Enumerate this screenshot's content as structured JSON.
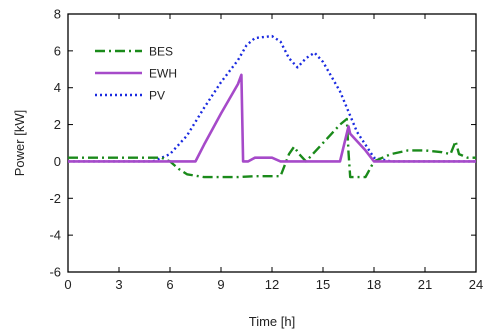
{
  "chart_data": {
    "type": "line",
    "title": "",
    "xlabel": "Time [h]",
    "ylabel": "Power [kW]",
    "xlim": [
      0,
      24
    ],
    "ylim": [
      -6,
      8
    ],
    "xticks": [
      0,
      3,
      6,
      9,
      12,
      15,
      18,
      21,
      24
    ],
    "yticks": [
      -6,
      -4,
      -2,
      0,
      2,
      4,
      6,
      8
    ],
    "xtick_labels": [
      "0",
      "3",
      "6",
      "9",
      "12",
      "15",
      "18",
      "21",
      "24"
    ],
    "ytick_labels": [
      "-6",
      "-4",
      "-2",
      "0",
      "2",
      "4",
      "6",
      "8"
    ],
    "grid": false,
    "legend_position": "top-left",
    "series": [
      {
        "name": "BES",
        "color": "#1a8a1a",
        "style": "dash-dot",
        "x": [
          0,
          5.5,
          6,
          6.5,
          7,
          8,
          9,
          10,
          11,
          12,
          12.5,
          13,
          13.3,
          13.6,
          14,
          14.5,
          15,
          15.5,
          16,
          16.4,
          16.5,
          16.6,
          17,
          17.5,
          18,
          18.5,
          19,
          20,
          21,
          22,
          22.5,
          22.8,
          23,
          23.5,
          24
        ],
        "values": [
          0.2,
          0.2,
          0.0,
          -0.4,
          -0.7,
          -0.85,
          -0.85,
          -0.85,
          -0.8,
          -0.8,
          -0.8,
          0.4,
          0.8,
          0.4,
          0.0,
          0.5,
          1.0,
          1.5,
          2.0,
          2.3,
          0.5,
          -0.85,
          -0.85,
          -0.85,
          0.0,
          0.2,
          0.4,
          0.6,
          0.6,
          0.5,
          0.4,
          1.1,
          0.4,
          0.2,
          0.2
        ]
      },
      {
        "name": "EWH",
        "color": "#a64ac9",
        "style": "solid",
        "x": [
          0,
          7.5,
          8,
          9,
          10,
          10.2,
          10.3,
          10.6,
          11,
          12,
          12.5,
          13,
          16,
          16.5,
          16.6,
          17.5,
          18,
          24
        ],
        "values": [
          0,
          0,
          0.9,
          2.6,
          4.2,
          4.7,
          0,
          0,
          0.2,
          0.2,
          0,
          0,
          0,
          1.9,
          1.5,
          0.6,
          0,
          0
        ]
      },
      {
        "name": "PV",
        "color": "#1a2ae0",
        "style": "dotted",
        "x": [
          0,
          5,
          6,
          7,
          8,
          9,
          10,
          10.5,
          11,
          12,
          12.5,
          13,
          13.5,
          14,
          14.5,
          15,
          16,
          17,
          18,
          19,
          24
        ],
        "values": [
          0,
          0,
          0.4,
          1.4,
          2.9,
          4.3,
          5.5,
          6.3,
          6.7,
          6.8,
          6.5,
          5.6,
          5.1,
          5.6,
          5.9,
          5.4,
          3.8,
          1.6,
          0.2,
          0,
          0
        ]
      }
    ]
  }
}
